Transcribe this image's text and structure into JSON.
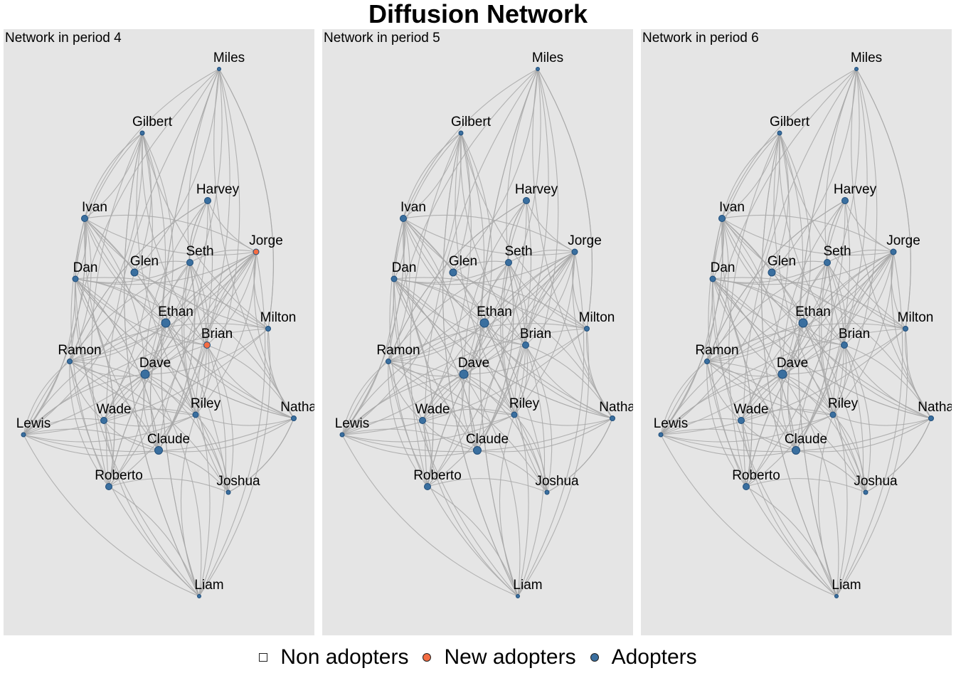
{
  "title": "Diffusion Network",
  "legend": {
    "items": [
      {
        "label": "Non adopters",
        "color": "#ffffff",
        "shape": "square"
      },
      {
        "label": "New adopters",
        "color": "#f46d43",
        "shape": "circle"
      },
      {
        "label": "Adopters",
        "color": "#3a6f9f",
        "shape": "circle"
      }
    ]
  },
  "nodes": [
    "Miles",
    "Gilbert",
    "Harvey",
    "Ivan",
    "Jorge",
    "Seth",
    "Glen",
    "Dan",
    "Ethan",
    "Milton",
    "Brian",
    "Ramon",
    "Dave",
    "Riley",
    "Wade",
    "Nathani",
    "Lewis",
    "Claude",
    "Roberto",
    "Joshua",
    "Liam"
  ],
  "panels": [
    {
      "title": "Network in period 4",
      "new_adopters": [
        "Jorge",
        "Brian"
      ]
    },
    {
      "title": "Network in period 5",
      "new_adopters": []
    },
    {
      "title": "Network in period 6",
      "new_adopters": []
    }
  ]
}
